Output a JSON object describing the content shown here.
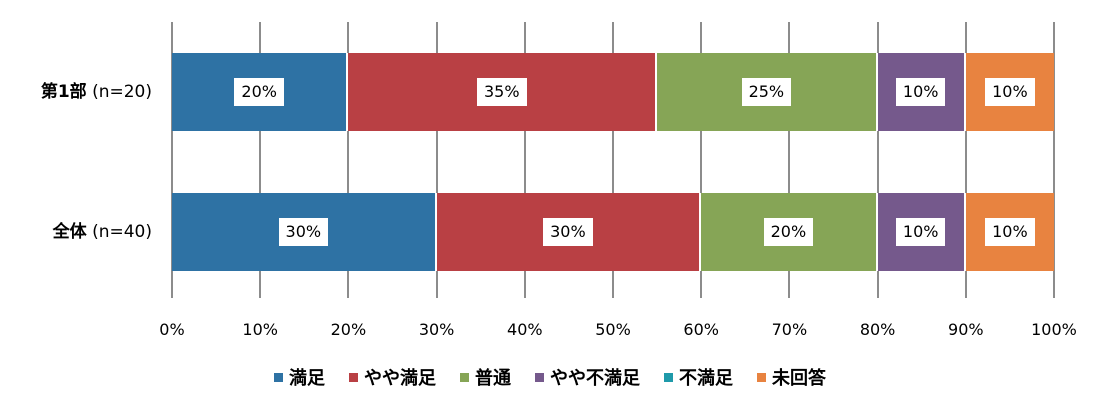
{
  "chart_data": {
    "type": "bar",
    "orientation": "horizontal",
    "stacked": "percent",
    "title": "",
    "xlabel": "",
    "ylabel": "",
    "xlim": [
      0,
      100
    ],
    "grid": true,
    "legend_position": "bottom",
    "categories": [
      "第1部 (n=20)",
      "全体 (n=40)"
    ],
    "category_parts": [
      {
        "main": "第1部",
        "n": "(n=20)"
      },
      {
        "main": "全体",
        "n": "(n=40)"
      }
    ],
    "x_ticks": [
      "0%",
      "10%",
      "20%",
      "30%",
      "40%",
      "50%",
      "60%",
      "70%",
      "80%",
      "90%",
      "100%"
    ],
    "series": [
      {
        "name": "満足",
        "color": "#2e72a4",
        "values": [
          20,
          30
        ],
        "labels": [
          "20%",
          "30%"
        ]
      },
      {
        "name": "やや満足",
        "color": "#b94044",
        "values": [
          35,
          30
        ],
        "labels": [
          "35%",
          "30%"
        ]
      },
      {
        "name": "普通",
        "color": "#86a556",
        "values": [
          25,
          20
        ],
        "labels": [
          "25%",
          "20%"
        ]
      },
      {
        "name": "やや不満足",
        "color": "#75598c",
        "values": [
          10,
          10
        ],
        "labels": [
          "10%",
          "10%"
        ]
      },
      {
        "name": "不満足",
        "color": "#1f9aaa",
        "values": [
          0,
          0
        ],
        "labels": [
          "",
          ""
        ]
      },
      {
        "name": "未回答",
        "color": "#e88340",
        "values": [
          10,
          10
        ],
        "labels": [
          "10%",
          "10%"
        ]
      }
    ]
  }
}
